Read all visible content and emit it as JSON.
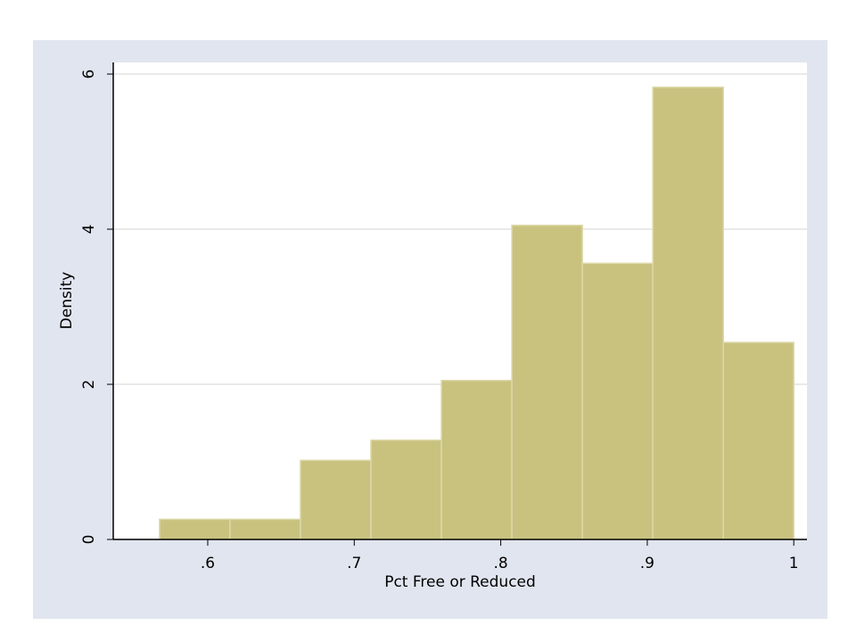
{
  "chart_data": {
    "type": "histogram",
    "x_label": "Pct Free or Reduced",
    "y_label": "Density",
    "bins": [
      0.5671,
      0.6152,
      0.6633,
      0.7114,
      0.7595,
      0.8076,
      0.8557,
      0.9038,
      0.9519,
      1.0
    ],
    "values": [
      0.26,
      0.26,
      1.02,
      1.28,
      2.05,
      4.05,
      3.56,
      5.83,
      2.54
    ],
    "color": "#c9c27f",
    "xlim": [
      0.5355,
      1.009
    ],
    "xticks": [
      {
        "value": 0.6,
        "label": ".6"
      },
      {
        "value": 0.7,
        "label": ".7"
      },
      {
        "value": 0.8,
        "label": ".8"
      },
      {
        "value": 0.9,
        "label": ".9"
      },
      1
    ],
    "ylim": [
      0,
      6.15
    ],
    "yticks": [
      0,
      2,
      4,
      6
    ],
    "grid": true
  }
}
